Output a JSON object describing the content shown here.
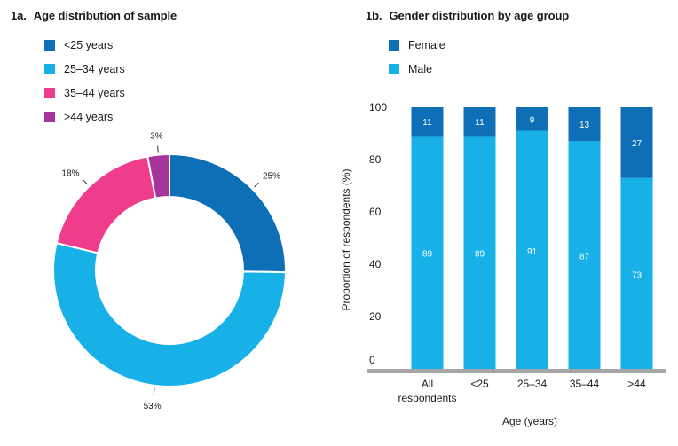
{
  "colors": {
    "dark_blue": "#0f6fb6",
    "light_blue": "#17b1e8",
    "pink": "#ef3c8c",
    "purple": "#a5359a",
    "axis": "#a6a6a6"
  },
  "chart_data": [
    {
      "id": "1a",
      "number": "1a.",
      "type": "pie",
      "donut": true,
      "title": "Age distribution of sample",
      "categories": [
        "<25 years",
        "25–34 years",
        "35–44 years",
        ">44 years"
      ],
      "values": [
        25,
        53,
        18,
        3
      ],
      "labels": [
        "25%",
        "53%",
        "18%",
        "3%"
      ],
      "colors": [
        "#0f6fb6",
        "#17b1e8",
        "#ef3c8c",
        "#a5359a"
      ],
      "legend_position": "top-left"
    },
    {
      "id": "1b",
      "number": "1b.",
      "type": "bar",
      "stacked": true,
      "title": "Gender distribution by age group",
      "categories": [
        [
          "All",
          "respondents"
        ],
        [
          "<25"
        ],
        [
          "25–34"
        ],
        [
          "35–44"
        ],
        [
          ">44"
        ]
      ],
      "series": [
        {
          "name": "Female",
          "values": [
            11,
            11,
            9,
            13,
            27
          ],
          "color": "#0f6fb6"
        },
        {
          "name": "Male",
          "values": [
            89,
            89,
            91,
            87,
            73
          ],
          "color": "#17b1e8"
        }
      ],
      "xlabel": "Age (years)",
      "ylabel": "Proportion of respondents (%)",
      "ylim": [
        0,
        100
      ],
      "yticks": [
        0,
        20,
        40,
        60,
        80,
        100
      ],
      "grid": false,
      "legend_position": "top-left"
    }
  ]
}
